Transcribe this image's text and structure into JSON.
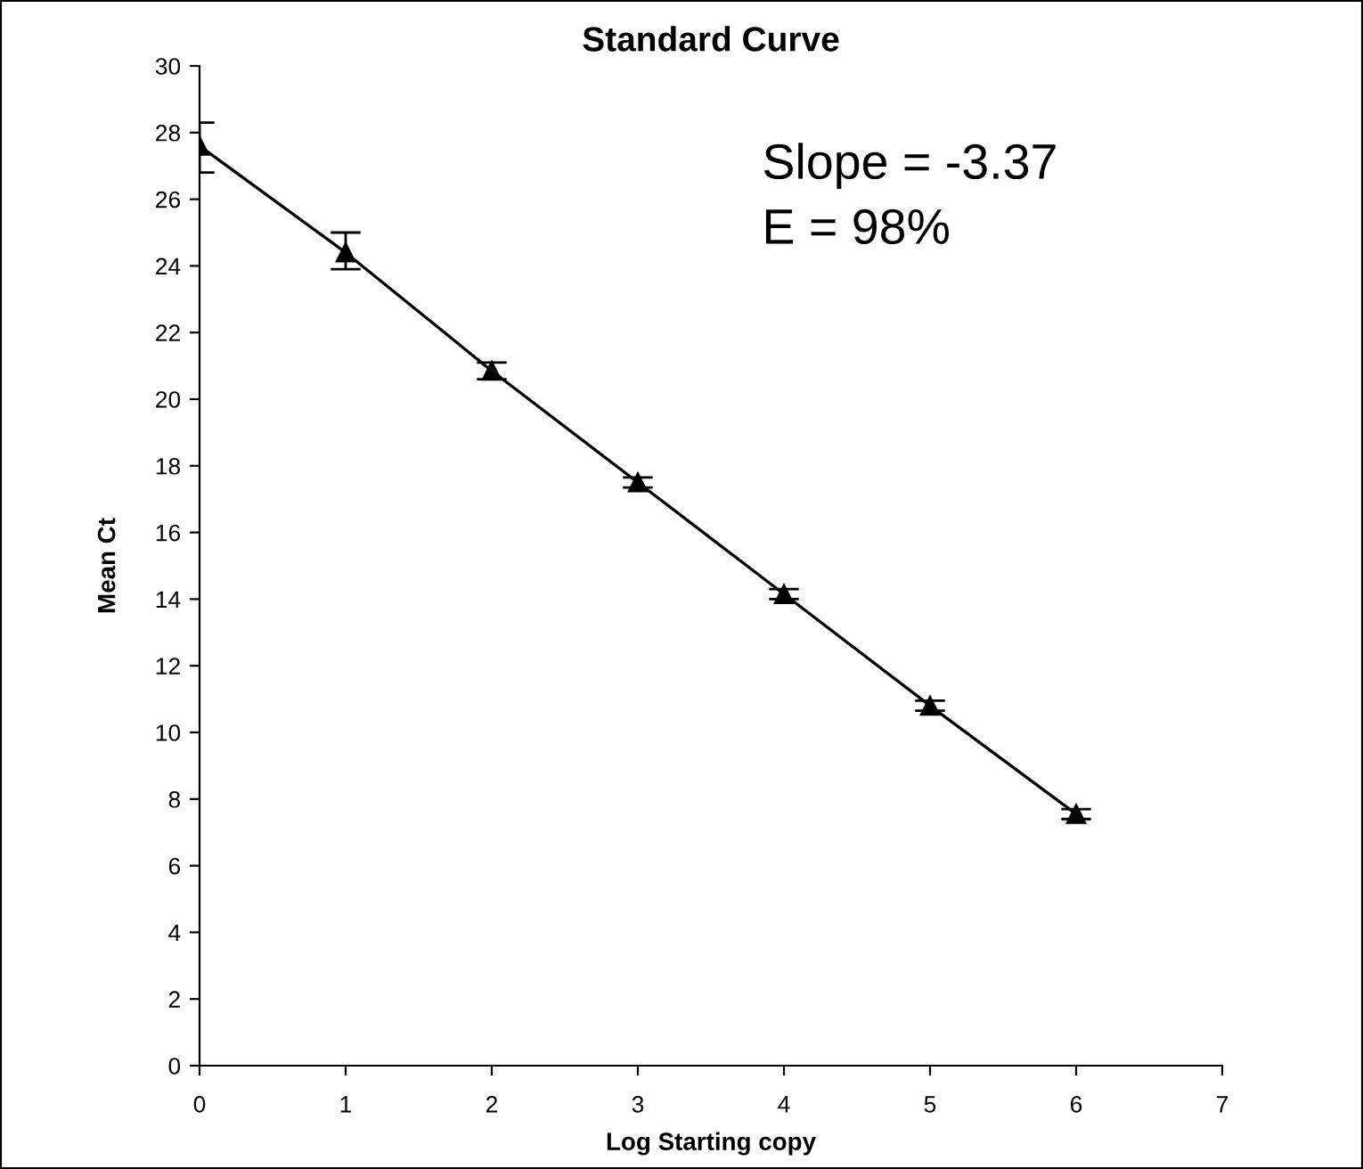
{
  "chart_data": {
    "type": "line",
    "title": "Standard Curve",
    "xlabel": "Log Starting copy",
    "ylabel": "Mean Ct",
    "x": [
      0,
      1,
      2,
      3,
      4,
      5,
      6
    ],
    "series": [
      {
        "color": "#000000",
        "values": [
          27.6,
          24.4,
          20.85,
          17.5,
          14.15,
          10.8,
          7.55
        ],
        "errors": [
          [
            26.8,
            28.3
          ],
          [
            23.9,
            25.0
          ],
          [
            20.6,
            21.1
          ],
          [
            17.35,
            17.65
          ],
          [
            14.0,
            14.3
          ],
          [
            10.65,
            10.95
          ],
          [
            7.4,
            7.7
          ]
        ]
      }
    ],
    "marker": "triangle",
    "line_style": "solid",
    "grid": false,
    "legend": false,
    "xlim": [
      0,
      7
    ],
    "xticks": [
      0,
      1,
      2,
      3,
      4,
      5,
      6,
      7
    ],
    "ylim": [
      0,
      30
    ],
    "yticks": [
      0,
      2,
      4,
      6,
      8,
      10,
      12,
      14,
      16,
      18,
      20,
      22,
      24,
      26,
      28,
      30
    ],
    "annotations": [
      "Slope = -3.37",
      "E = 98%"
    ]
  }
}
